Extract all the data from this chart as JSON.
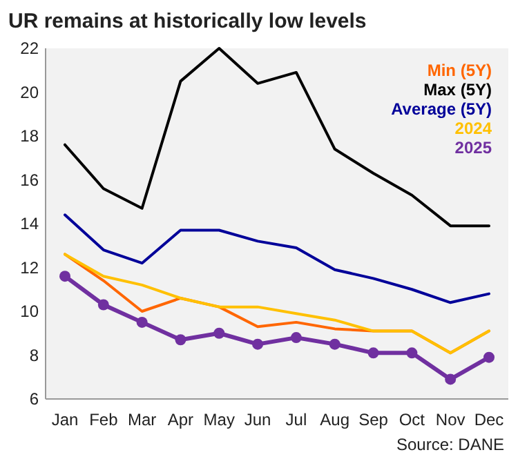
{
  "chart_data": {
    "type": "line",
    "title": "UR remains at historically low levels",
    "categories": [
      "Jan",
      "Feb",
      "Mar",
      "Apr",
      "May",
      "Jun",
      "Jul",
      "Aug",
      "Sep",
      "Oct",
      "Nov",
      "Dec"
    ],
    "series": [
      {
        "name": "Min (5Y)",
        "color": "#ff6600",
        "values": [
          12.6,
          11.4,
          10.0,
          10.6,
          10.2,
          9.3,
          9.5,
          9.2,
          9.1,
          9.1,
          8.1,
          9.1
        ]
      },
      {
        "name": "Max (5Y)",
        "color": "#000000",
        "values": [
          17.6,
          15.6,
          14.7,
          20.5,
          22.0,
          20.4,
          20.9,
          17.4,
          16.3,
          15.3,
          13.9,
          13.9
        ]
      },
      {
        "name": "Average (5Y)",
        "color": "#000099",
        "values": [
          14.4,
          12.8,
          12.2,
          13.7,
          13.7,
          13.2,
          12.9,
          11.9,
          11.5,
          11.0,
          10.4,
          10.8
        ]
      },
      {
        "name": "2024",
        "color": "#ffc000",
        "values": [
          12.6,
          11.6,
          11.2,
          10.6,
          10.2,
          10.2,
          9.9,
          9.6,
          9.1,
          9.1,
          8.1,
          9.1
        ]
      },
      {
        "name": "2025",
        "color": "#7030a0",
        "marker": "circle",
        "values": [
          11.6,
          10.3,
          9.5,
          8.7,
          9.0,
          8.5,
          8.8,
          8.5,
          8.1,
          8.1,
          6.9,
          7.9
        ]
      }
    ],
    "ylim": [
      6,
      22
    ],
    "yticks": [
      6,
      8,
      10,
      12,
      14,
      16,
      18,
      20,
      22
    ],
    "legend": "top right",
    "annotations": [
      "Source: DANE"
    ]
  }
}
